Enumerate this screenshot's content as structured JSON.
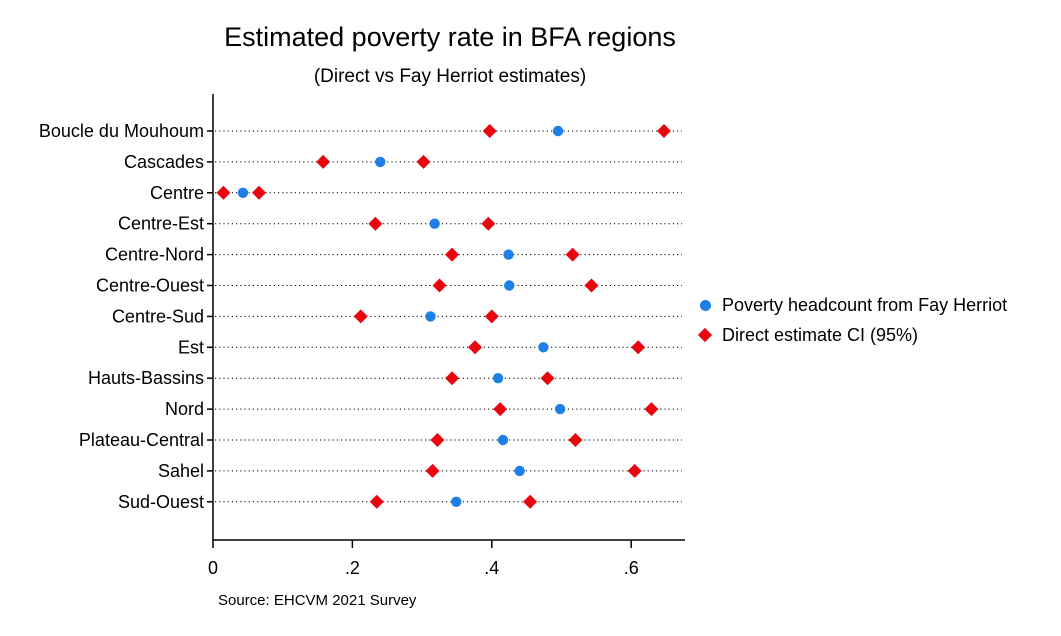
{
  "chart_data": {
    "type": "scatter",
    "title": "Estimated poverty rate in BFA regions",
    "subtitle": "(Direct vs Fay Herriot estimates)",
    "note": "Source: EHCVM 2021 Survey",
    "xlim": [
      0,
      0.67
    ],
    "xticks": [
      0,
      0.2,
      0.4,
      0.6
    ],
    "xtick_labels": [
      "0",
      ".2",
      ".4",
      ".6"
    ],
    "legend_position": "right",
    "grid": "dotted horizontal lines",
    "categories": [
      "Boucle du Mouhoum",
      "Cascades",
      "Centre",
      "Centre-Est",
      "Centre-Nord",
      "Centre-Ouest",
      "Centre-Sud",
      "Est",
      "Hauts-Bassins",
      "Nord",
      "Plateau-Central",
      "Sahel",
      "Sud-Ouest"
    ],
    "series": [
      {
        "name": "Poverty headcount from Fay Herriot",
        "marker": "circle",
        "color": "#1f7fe6",
        "values": [
          0.495,
          0.24,
          0.043,
          0.318,
          0.424,
          0.425,
          0.312,
          0.474,
          0.409,
          0.498,
          0.416,
          0.44,
          0.349
        ]
      },
      {
        "name": "Direct estimate CI (95%)",
        "marker": "diamond",
        "color": "#e8050e",
        "lower": [
          0.397,
          0.158,
          0.015,
          0.233,
          0.343,
          0.325,
          0.212,
          0.376,
          0.343,
          0.412,
          0.322,
          0.315,
          0.235
        ],
        "upper": [
          0.647,
          0.302,
          0.066,
          0.395,
          0.516,
          0.543,
          0.4,
          0.61,
          0.48,
          0.629,
          0.52,
          0.605,
          0.455
        ]
      }
    ]
  }
}
